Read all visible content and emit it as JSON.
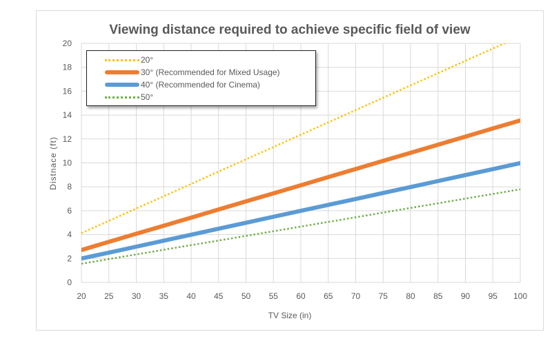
{
  "chart_data": {
    "type": "line",
    "title": "Viewing distance required to achieve specific field of view",
    "xlabel": "TV Size (in)",
    "ylabel": "Distnace (ft)",
    "x": [
      20,
      25,
      30,
      35,
      40,
      45,
      50,
      55,
      60,
      65,
      70,
      75,
      80,
      85,
      90,
      95,
      100
    ],
    "xlim": [
      20,
      100
    ],
    "ylim": [
      0,
      20
    ],
    "xticks": [
      "20",
      "25",
      "30",
      "35",
      "40",
      "45",
      "50",
      "55",
      "60",
      "65",
      "70",
      "75",
      "80",
      "85",
      "90",
      "95",
      "100"
    ],
    "yticks": [
      "0",
      "2",
      "4",
      "6",
      "8",
      "10",
      "12",
      "14",
      "16",
      "18",
      "20"
    ],
    "grid": true,
    "legend_position": "top-left",
    "series": [
      {
        "name": "20°",
        "color": "#FFC000",
        "style": "dotted",
        "values": [
          4.12,
          5.15,
          6.18,
          7.21,
          8.24,
          9.27,
          10.3,
          11.33,
          12.36,
          13.39,
          14.42,
          15.45,
          16.48,
          17.51,
          18.54,
          19.57,
          20.6
        ]
      },
      {
        "name": "30° (Recommended for Mixed Usage)",
        "color": "#ED7D31",
        "style": "solid",
        "values": [
          2.71,
          3.39,
          4.07,
          4.74,
          5.42,
          6.1,
          6.78,
          7.45,
          8.13,
          8.81,
          9.49,
          10.17,
          10.84,
          11.52,
          12.2,
          12.88,
          13.55
        ]
      },
      {
        "name": "40° (Recommended for Cinema)",
        "color": "#5B9BD5",
        "style": "solid",
        "values": [
          2.0,
          2.49,
          2.99,
          3.49,
          3.99,
          4.49,
          4.99,
          5.49,
          5.99,
          6.49,
          6.98,
          7.48,
          7.98,
          8.48,
          8.98,
          9.48,
          9.98
        ]
      },
      {
        "name": "50°",
        "color": "#70AD47",
        "style": "dotted",
        "values": [
          1.56,
          1.95,
          2.34,
          2.73,
          3.12,
          3.5,
          3.89,
          4.28,
          4.67,
          5.06,
          5.45,
          5.84,
          6.23,
          6.62,
          7.01,
          7.4,
          7.79
        ]
      }
    ]
  }
}
